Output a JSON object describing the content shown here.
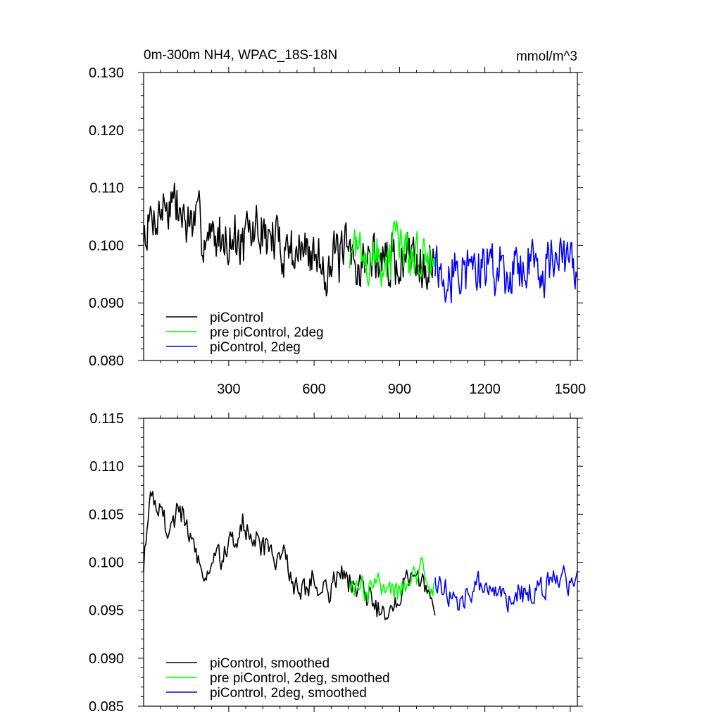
{
  "chart_data": [
    {
      "type": "line",
      "title_left": "0m-300m NH4, WPAC_18S-18N",
      "title_right": "mmol/m^3",
      "xlim": [
        1,
        1525
      ],
      "ylim": [
        0.08,
        0.13
      ],
      "yticks": [
        "0.080",
        "0.090",
        "0.100",
        "0.110",
        "0.120",
        "0.130"
      ],
      "xticks": [
        "300",
        "600",
        "900",
        "1200",
        "1500"
      ],
      "legend_position": "bottom-left",
      "series": [
        {
          "name": "piControl",
          "color": "#000000",
          "x": [
            1,
            50,
            100,
            150,
            200,
            250,
            300,
            350,
            400,
            450,
            500,
            550,
            600,
            650,
            700,
            750,
            800,
            850,
            900,
            950,
            1000,
            1025
          ],
          "y": [
            0.102,
            0.106,
            0.108,
            0.104,
            0.103,
            0.101,
            0.102,
            0.1,
            0.103,
            0.101,
            0.1,
            0.099,
            0.098,
            0.097,
            0.098,
            0.097,
            0.098,
            0.097,
            0.097,
            0.099,
            0.098,
            0.097
          ]
        },
        {
          "name": "pre piControl, 2deg",
          "color": "#00ff00",
          "x": [
            725,
            775,
            825,
            875,
            925,
            975,
            1025
          ],
          "y": [
            0.099,
            0.098,
            0.097,
            0.098,
            0.099,
            0.098,
            0.098
          ]
        },
        {
          "name": "piControl, 2deg",
          "color": "#0000ff",
          "x": [
            1025,
            1075,
            1125,
            1175,
            1225,
            1275,
            1325,
            1375,
            1425,
            1475,
            1525
          ],
          "y": [
            0.097,
            0.096,
            0.096,
            0.096,
            0.097,
            0.096,
            0.097,
            0.097,
            0.097,
            0.097,
            0.096
          ]
        }
      ]
    },
    {
      "type": "line",
      "xlim": [
        1,
        1525
      ],
      "ylim": [
        0.085,
        0.115
      ],
      "yticks": [
        "0.085",
        "0.090",
        "0.095",
        "0.100",
        "0.105",
        "0.110",
        "0.115"
      ],
      "legend_position": "bottom-left",
      "series": [
        {
          "name": "piControl, smoothed",
          "color": "#000000",
          "x": [
            1,
            25,
            50,
            75,
            100,
            125,
            150,
            175,
            200,
            250,
            300,
            350,
            400,
            450,
            500,
            550,
            600,
            650,
            700,
            750,
            800,
            850,
            900,
            950,
            1000,
            1025
          ],
          "y": [
            0.1,
            0.108,
            0.106,
            0.104,
            0.103,
            0.106,
            0.104,
            0.102,
            0.099,
            0.1,
            0.101,
            0.104,
            0.102,
            0.101,
            0.1,
            0.097,
            0.098,
            0.097,
            0.099,
            0.097,
            0.096,
            0.095,
            0.097,
            0.099,
            0.097,
            0.096
          ]
        },
        {
          "name": "pre piControl, 2deg, smoothed",
          "color": "#00ff00",
          "x": [
            725,
            775,
            825,
            875,
            925,
            975,
            1025
          ],
          "y": [
            0.098,
            0.097,
            0.098,
            0.097,
            0.098,
            0.099,
            0.097
          ]
        },
        {
          "name": "piControl, 2deg, smoothed",
          "color": "#0000ff",
          "x": [
            1025,
            1075,
            1125,
            1175,
            1225,
            1275,
            1325,
            1375,
            1425,
            1475,
            1525
          ],
          "y": [
            0.098,
            0.097,
            0.096,
            0.097,
            0.097,
            0.096,
            0.097,
            0.097,
            0.098,
            0.098,
            0.097
          ]
        }
      ]
    }
  ]
}
